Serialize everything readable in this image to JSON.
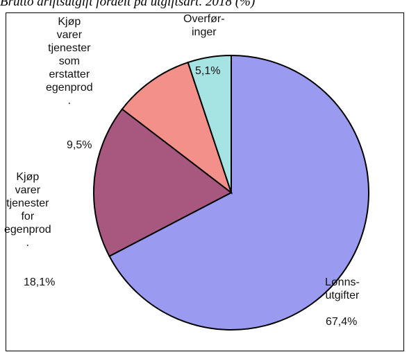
{
  "chart_data": {
    "type": "pie",
    "title": "Brutto driftsutgift fordelt på utgiftsart. 2018 (%)",
    "categories": [
      "Lønns-\nutgifter",
      "Kjøp\nvarer\ntjenester\nfor\negenprod\n.",
      "Kjøp\nvarer\ntjenester\nsom\nerstatter\negenprod\n.",
      "Overfør-\ninger"
    ],
    "values": [
      67.4,
      18.1,
      9.5,
      5.1
    ],
    "value_labels": [
      "67,4%",
      "18,1%",
      "9,5%",
      "5,1%"
    ],
    "colors": [
      "#9a9af0",
      "#a8577f",
      "#f4908a",
      "#a6e4e4"
    ]
  }
}
